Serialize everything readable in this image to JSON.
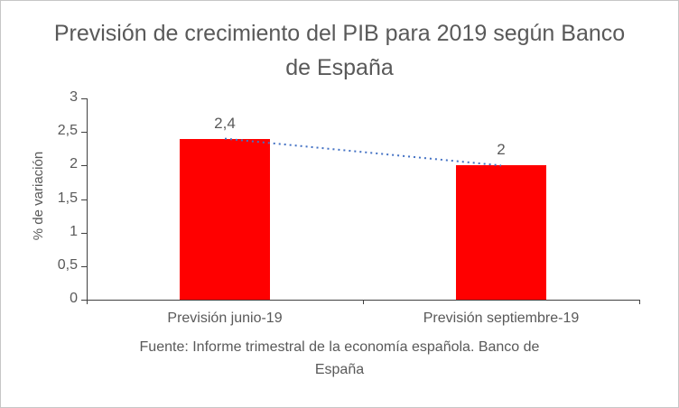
{
  "chart_data": {
    "type": "bar",
    "title": "Previsión de crecimiento del PIB para 2019 según Banco de España",
    "categories": [
      "Previsión junio-19",
      "Previsión septiembre-19"
    ],
    "values": [
      2.4,
      2
    ],
    "value_labels": [
      "2,4",
      "2"
    ],
    "xlabel": "",
    "ylabel": "% de variación",
    "ylim": [
      0,
      3
    ],
    "ytick_step": 0.5,
    "ytick_labels": [
      "0",
      "0,5",
      "1",
      "1,5",
      "2",
      "2,5",
      "3"
    ],
    "grid": "off",
    "legend": "none",
    "bar_color": "#FF0000",
    "trendline": {
      "style": "dotted",
      "color": "#4472C4",
      "from_value": 2.4,
      "to_value": 2
    },
    "source": "Fuente: Informe trimestral de la economía española. Banco de España"
  }
}
